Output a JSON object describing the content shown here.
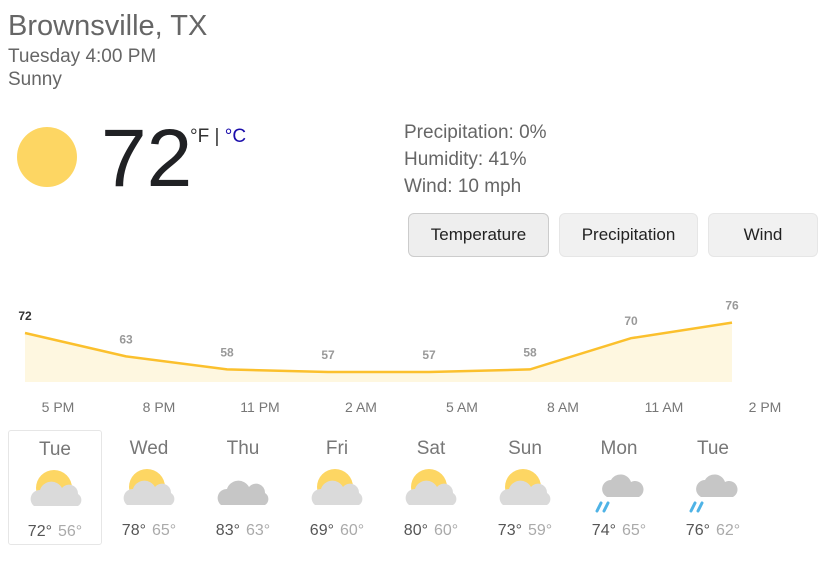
{
  "header": {
    "location": "Brownsville, TX",
    "time": "Tuesday 4:00 PM",
    "condition": "Sunny"
  },
  "current": {
    "temperature": "72",
    "unit_f": "°F",
    "separator": "|",
    "unit_c": "°C"
  },
  "details": [
    "Precipitation: 0%",
    "Humidity: 41%",
    "Wind: 10 mph"
  ],
  "tabs": [
    "Temperature",
    "Precipitation",
    "Wind"
  ],
  "hourly": {
    "values": [
      72,
      63,
      58,
      57,
      57,
      58,
      70,
      76
    ],
    "times": [
      "5 PM",
      "8 PM",
      "11 PM",
      "2 AM",
      "5 AM",
      "8 AM",
      "11 AM",
      "2 PM"
    ]
  },
  "days": [
    {
      "name": "Tue",
      "high": "72°",
      "low": "56°"
    },
    {
      "name": "Wed",
      "high": "78°",
      "low": "65°"
    },
    {
      "name": "Thu",
      "high": "83°",
      "low": "63°"
    },
    {
      "name": "Fri",
      "high": "69°",
      "low": "60°"
    },
    {
      "name": "Sat",
      "high": "80°",
      "low": "60°"
    },
    {
      "name": "Sun",
      "high": "73°",
      "low": "59°"
    },
    {
      "name": "Mon",
      "high": "74°",
      "low": "65°"
    },
    {
      "name": "Tue",
      "high": "76°",
      "low": "62°"
    }
  ]
}
